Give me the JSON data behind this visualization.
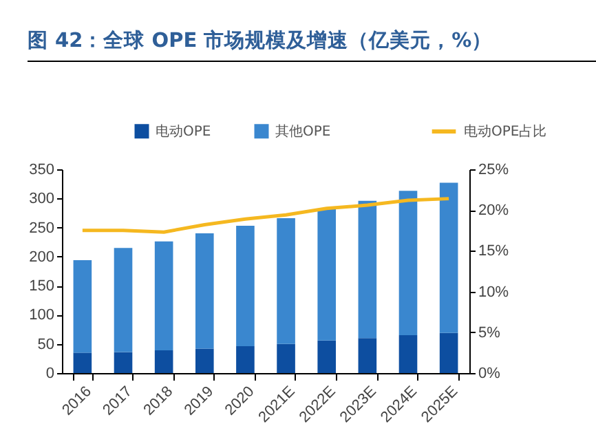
{
  "chart_data": {
    "type": "bar",
    "title": "图 42：全球 OPE 市场规模及增速（亿美元，%）",
    "categories": [
      "2016",
      "2017",
      "2018",
      "2019",
      "2020",
      "2021E",
      "2022E",
      "2023E",
      "2024E",
      "2025E"
    ],
    "stacked": true,
    "series": [
      {
        "name": "电动OPE",
        "color": "#0d4ea0",
        "values": [
          35,
          36,
          39,
          42,
          46,
          50,
          56,
          60,
          65,
          69
        ]
      },
      {
        "name": "其他OPE",
        "color": "#3a87cf",
        "values": [
          159,
          179,
          187,
          198,
          207,
          216,
          226,
          236,
          248,
          258
        ]
      },
      {
        "name": "电动OPE占比",
        "type": "line",
        "axis": "y2",
        "color": "#f5b820",
        "values": [
          17.5,
          17.5,
          17.3,
          18.2,
          18.9,
          19.4,
          20.2,
          20.6,
          21.2,
          21.4
        ]
      }
    ],
    "ylim": [
      0,
      350
    ],
    "yticks": [
      0,
      50,
      100,
      150,
      200,
      250,
      300,
      350
    ],
    "y2lim": [
      0,
      25
    ],
    "y2ticks": [
      {
        "value": 0,
        "label": "0%"
      },
      {
        "value": 5,
        "label": "5%"
      },
      {
        "value": 10,
        "label": "10%"
      },
      {
        "value": 15,
        "label": "15%"
      },
      {
        "value": 20,
        "label": "20%"
      },
      {
        "value": 25,
        "label": "25%"
      }
    ],
    "grid": false,
    "legend": "top"
  }
}
